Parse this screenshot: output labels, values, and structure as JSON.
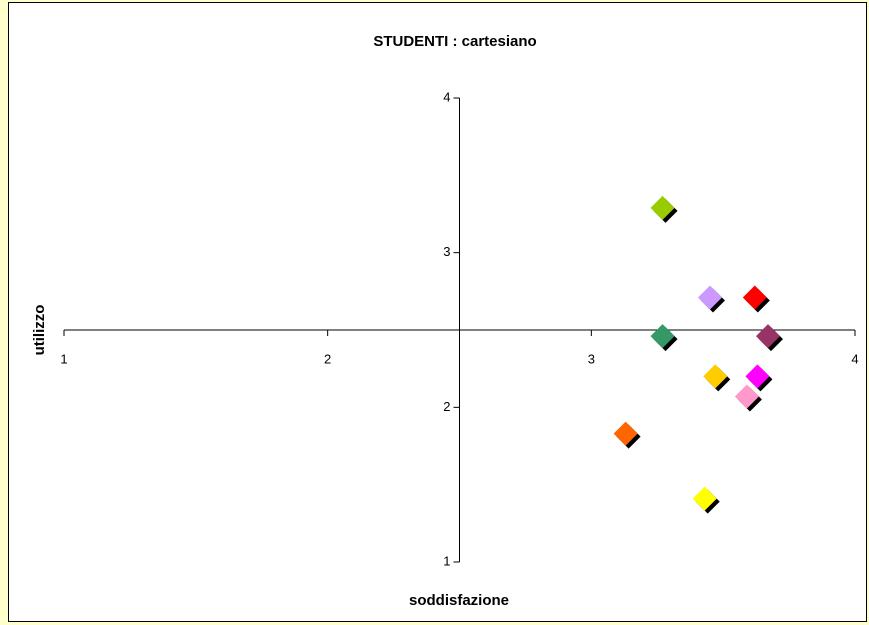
{
  "chart_data": {
    "type": "scatter",
    "title": "STUDENTI : cartesiano",
    "x_label": "soddisfazione",
    "y_label": "utilizzo",
    "x": [
      3.27,
      3.45,
      3.62,
      3.27,
      3.67,
      3.47,
      3.63,
      3.59,
      3.13,
      3.43
    ],
    "y": [
      3.29,
      2.71,
      2.71,
      2.46,
      2.46,
      2.2,
      2.2,
      2.07,
      1.83,
      1.41
    ],
    "colors": [
      "#99cc00",
      "#cc99ff",
      "#ff0000",
      "#339966",
      "#993366",
      "#ffcc00",
      "#ff00ff",
      "#ff99cc",
      "#ff6600",
      "#ffff00"
    ],
    "xlim": [
      1,
      4
    ],
    "ylim": [
      1,
      4
    ],
    "xticks": [
      1,
      2,
      3,
      4
    ],
    "yticks": [
      1,
      2,
      3,
      4
    ],
    "x_axis_crosses": 2.5,
    "y_axis_crosses": 2.5
  }
}
